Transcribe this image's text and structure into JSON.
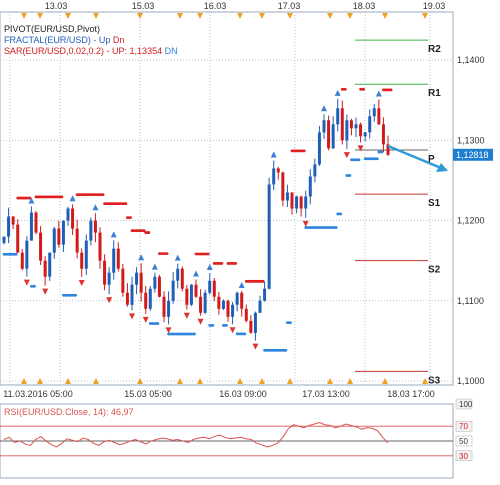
{
  "legend": {
    "pivot": "PIVOT(EUR/USD,Pivot)",
    "fractal_name": "FRACTAL(EUR/USD) -",
    "fractal_up": "Up",
    "fractal_dn": "Dn",
    "sar_name": "SAR(EUR/USD,0.02,0.2) -",
    "sar_up": "UP: 1,13354",
    "sar_dn": "DN",
    "rsi": "RSI(EUR/USD.Close, 14): 46,97"
  },
  "colors": {
    "bull": "#1f5fb8",
    "bear": "#d11b1b",
    "sar_up": "#2e86de",
    "sar_dn": "#e02020",
    "fractal_up": "#3b7fd6",
    "fractal_dn": "#d33",
    "pivot_r": "#3cb043",
    "pivot_s": "#c0392b",
    "pivot_p": "#666666",
    "grid": "#b8c4d6",
    "arrow": "#2e9bd6",
    "marker": "#f0a020",
    "price_box": "#1e7fd0",
    "rsi_line": "#d9534f"
  },
  "chart_data": {
    "type": "candlestick",
    "title": "",
    "ylim": [
      1.0995,
      1.146
    ],
    "y_ticks": [
      "1,1000",
      "1,1100",
      "1,1200",
      "1,1300",
      "1,1400"
    ],
    "top_axis_dates": [
      "13.03",
      "15.03",
      "16.03",
      "17.03",
      "18.03",
      "19.03"
    ],
    "bottom_axis_labels": [
      "11.03.2016 05:00",
      "15.03 05:00",
      "16.03 09:00",
      "17.03 13:00",
      "18.03 17:00"
    ],
    "last_price": "1,12818",
    "pivot_levels": [
      {
        "label": "R2",
        "value": 1.1425,
        "kind": "r"
      },
      {
        "label": "R1",
        "value": 1.137,
        "kind": "r"
      },
      {
        "label": "P",
        "value": 1.1288,
        "kind": "p"
      },
      {
        "label": "S1",
        "value": 1.1233,
        "kind": "s"
      },
      {
        "label": "S2",
        "value": 1.115,
        "kind": "s"
      },
      {
        "label": "S3",
        "value": 1.1012,
        "kind": "s"
      }
    ],
    "close_series": [
      1.118,
      1.1205,
      1.1195,
      1.116,
      1.114,
      1.1175,
      1.121,
      1.1185,
      1.115,
      1.113,
      1.116,
      1.119,
      1.117,
      1.12,
      1.1215,
      1.119,
      1.116,
      1.114,
      1.1175,
      1.12,
      1.1185,
      1.115,
      1.112,
      1.1135,
      1.1165,
      1.114,
      1.111,
      1.1095,
      1.112,
      1.1135,
      1.111,
      1.109,
      1.1115,
      1.113,
      1.1105,
      1.108,
      1.11,
      1.1125,
      1.114,
      1.1115,
      1.1095,
      1.112,
      1.1105,
      1.1085,
      1.111,
      1.1125,
      1.1105,
      1.109,
      1.11,
      1.108,
      1.1095,
      1.111,
      1.109,
      1.1075,
      1.106,
      1.1085,
      1.11,
      1.1115,
      1.1245,
      1.1265,
      1.126,
      1.1225,
      1.1235,
      1.1215,
      1.123,
      1.1215,
      1.123,
      1.1255,
      1.127,
      1.131,
      1.1325,
      1.129,
      1.132,
      1.134,
      1.13,
      1.1325,
      1.1315,
      1.132,
      1.1305,
      1.131,
      1.133,
      1.134,
      1.132,
      1.1295,
      1.1282
    ],
    "rsi": {
      "ylim": [
        0,
        100
      ],
      "levels": [
        {
          "label": "100",
          "value": 100
        },
        {
          "label": "70",
          "value": 70
        },
        {
          "label": "50",
          "value": 50
        },
        {
          "label": "30",
          "value": 30
        }
      ],
      "values": [
        52,
        55,
        48,
        50,
        46,
        44,
        52,
        56,
        50,
        45,
        42,
        47,
        53,
        51,
        49,
        54,
        52,
        47,
        44,
        49,
        51,
        48,
        45,
        47,
        50,
        52,
        49,
        46,
        50,
        52,
        54,
        53,
        51,
        52,
        50,
        48,
        52,
        54,
        55,
        53,
        56,
        58,
        55,
        53,
        54,
        55,
        53,
        52,
        47,
        45,
        42,
        44,
        47,
        55,
        66,
        72,
        70,
        68,
        71,
        73,
        75,
        72,
        71,
        68,
        70,
        73,
        71,
        69,
        66,
        68,
        67,
        64,
        55,
        47
      ]
    }
  }
}
